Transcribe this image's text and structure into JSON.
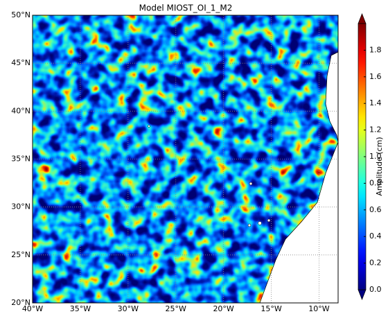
{
  "chart_data": {
    "type": "heatmap",
    "title": "Model MIOST_OI_1_M2",
    "xlim": [
      -40,
      -8
    ],
    "ylim": [
      20,
      50
    ],
    "xticks": [
      {
        "value": -40,
        "label": "40°W"
      },
      {
        "value": -35,
        "label": "35°W"
      },
      {
        "value": -30,
        "label": "30°W"
      },
      {
        "value": -25,
        "label": "25°W"
      },
      {
        "value": -20,
        "label": "20°W"
      },
      {
        "value": -15,
        "label": "15°W"
      },
      {
        "value": -10,
        "label": "10°W"
      }
    ],
    "yticks": [
      {
        "value": 20,
        "label": "20°N"
      },
      {
        "value": 25,
        "label": "25°N"
      },
      {
        "value": 30,
        "label": "30°N"
      },
      {
        "value": 35,
        "label": "35°N"
      },
      {
        "value": 40,
        "label": "40°N"
      },
      {
        "value": 45,
        "label": "45°N"
      },
      {
        "value": 50,
        "label": "50°N"
      }
    ],
    "grid": true,
    "colormap": "jet",
    "colorbar": {
      "label": "Amplitude (cm)",
      "lim": [
        0,
        2
      ],
      "ticks": [
        {
          "value": 0,
          "label": "0.0"
        },
        0.2,
        0.4,
        0.6,
        0.8,
        {
          "value": 1,
          "label": "1.0"
        },
        1.2,
        1.4,
        1.6,
        1.8
      ]
    }
  }
}
